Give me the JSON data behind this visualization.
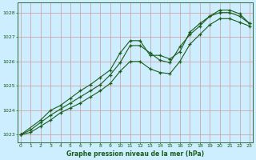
{
  "title": "Graphe pression niveau de la mer (hPa)",
  "bg_color": "#cceeff",
  "line_color": "#1a5c1a",
  "grid_color": "#cc9999",
  "border_color": "#336633",
  "xlabel_color": "#1a5c1a",
  "ylim": [
    1022.7,
    1028.4
  ],
  "xlim": [
    -0.3,
    23.3
  ],
  "yticks": [
    1023,
    1024,
    1025,
    1026,
    1027,
    1028
  ],
  "xticks": [
    0,
    1,
    2,
    3,
    4,
    5,
    6,
    7,
    8,
    9,
    10,
    11,
    12,
    13,
    14,
    15,
    16,
    17,
    18,
    19,
    20,
    21,
    22,
    23
  ],
  "line1_x": [
    0,
    1,
    2,
    3,
    4,
    5,
    6,
    7,
    8,
    9,
    10,
    11,
    12,
    13,
    14,
    15,
    16,
    17,
    18,
    19,
    20,
    21,
    22,
    23
  ],
  "line1_y": [
    1023.0,
    1023.1,
    1023.35,
    1023.6,
    1023.9,
    1024.1,
    1024.3,
    1024.55,
    1024.8,
    1025.1,
    1025.6,
    1026.0,
    1026.0,
    1025.7,
    1025.55,
    1025.5,
    1026.0,
    1026.7,
    1027.1,
    1027.5,
    1027.75,
    1027.75,
    1027.6,
    1027.45
  ],
  "line2_x": [
    0,
    2,
    3,
    4,
    5,
    6,
    7,
    8,
    9,
    10,
    11,
    12,
    13,
    14,
    15,
    16,
    17,
    18,
    19,
    20,
    21,
    22,
    23
  ],
  "line2_y": [
    1023.0,
    1023.6,
    1024.0,
    1024.2,
    1024.5,
    1024.8,
    1025.05,
    1025.35,
    1025.65,
    1026.35,
    1026.85,
    1026.85,
    1026.25,
    1026.25,
    1026.1,
    1026.4,
    1027.2,
    1027.55,
    1027.85,
    1028.0,
    1028.0,
    1027.85,
    1027.55
  ],
  "line3_x": [
    0,
    1,
    2,
    3,
    4,
    5,
    6,
    7,
    8,
    9,
    10,
    11,
    12,
    13,
    14,
    15,
    16,
    17,
    18,
    19,
    20,
    21,
    22,
    23
  ],
  "line3_y": [
    1023.0,
    1023.2,
    1023.5,
    1023.8,
    1024.05,
    1024.3,
    1024.55,
    1024.8,
    1025.05,
    1025.45,
    1025.95,
    1026.65,
    1026.65,
    1026.35,
    1026.05,
    1025.95,
    1026.6,
    1027.1,
    1027.45,
    1027.85,
    1028.1,
    1028.1,
    1027.95,
    1027.55
  ]
}
